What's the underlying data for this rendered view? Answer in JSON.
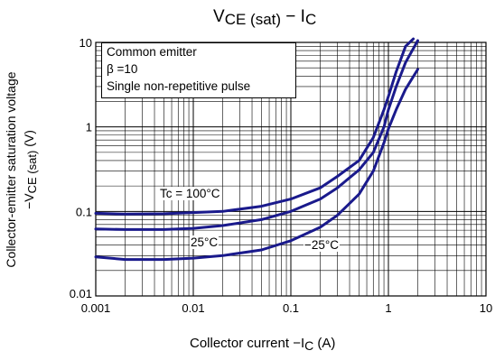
{
  "chart_data": {
    "type": "line",
    "title_main": "V",
    "title_sub": "CE (sat)",
    "title_rest": " − I",
    "title_end": "C",
    "xlabel_main": "Collector current   −I",
    "xlabel_sub": "C",
    "xlabel_unit": "   (A)",
    "ylabel_line1": "Collector-emitter saturation voltage",
    "ylabel_line2_main": "−V",
    "ylabel_line2_sub": "CE (sat)",
    "ylabel_line2_unit": "     (V)",
    "x_scale": "log",
    "y_scale": "log",
    "xlim": [
      0.001,
      10
    ],
    "ylim": [
      0.01,
      10
    ],
    "x_ticks": [
      {
        "v": 0.001,
        "label": "0.001"
      },
      {
        "v": 0.01,
        "label": "0.01"
      },
      {
        "v": 0.1,
        "label": "0.1"
      },
      {
        "v": 1,
        "label": "1"
      },
      {
        "v": 10,
        "label": "10"
      }
    ],
    "y_ticks": [
      {
        "v": 0.01,
        "label": "0.01"
      },
      {
        "v": 0.1,
        "label": "0.1"
      },
      {
        "v": 1,
        "label": "1"
      },
      {
        "v": 10,
        "label": "10"
      }
    ],
    "grid": true,
    "notes": [
      "Common emitter",
      "β =10",
      "Single non-repetitive pulse"
    ],
    "series": [
      {
        "name": "Tc = 100°C",
        "x": [
          0.001,
          0.002,
          0.005,
          0.01,
          0.02,
          0.05,
          0.1,
          0.2,
          0.3,
          0.5,
          0.7,
          0.9,
          1.0,
          1.2,
          1.5,
          1.8
        ],
        "y": [
          0.095,
          0.093,
          0.094,
          0.097,
          0.1,
          0.115,
          0.14,
          0.19,
          0.26,
          0.4,
          0.75,
          1.6,
          2.3,
          4.5,
          9.0,
          11.0
        ]
      },
      {
        "name": "25°C",
        "x": [
          0.001,
          0.002,
          0.005,
          0.01,
          0.02,
          0.05,
          0.1,
          0.2,
          0.3,
          0.5,
          0.7,
          0.9,
          1.0,
          1.2,
          1.5,
          2.0
        ],
        "y": [
          0.062,
          0.061,
          0.061,
          0.063,
          0.068,
          0.08,
          0.1,
          0.14,
          0.19,
          0.31,
          0.5,
          1.0,
          1.6,
          3.0,
          5.8,
          10.5
        ]
      },
      {
        "name": "−25°C",
        "x": [
          0.001,
          0.002,
          0.005,
          0.01,
          0.02,
          0.05,
          0.1,
          0.2,
          0.3,
          0.5,
          0.7,
          0.9,
          1.0,
          1.2,
          1.5,
          2.0
        ],
        "y": [
          0.029,
          0.027,
          0.027,
          0.028,
          0.03,
          0.035,
          0.045,
          0.065,
          0.09,
          0.16,
          0.3,
          0.65,
          0.95,
          1.6,
          2.8,
          4.8
        ]
      }
    ],
    "line_color": "#1a1a8c"
  }
}
